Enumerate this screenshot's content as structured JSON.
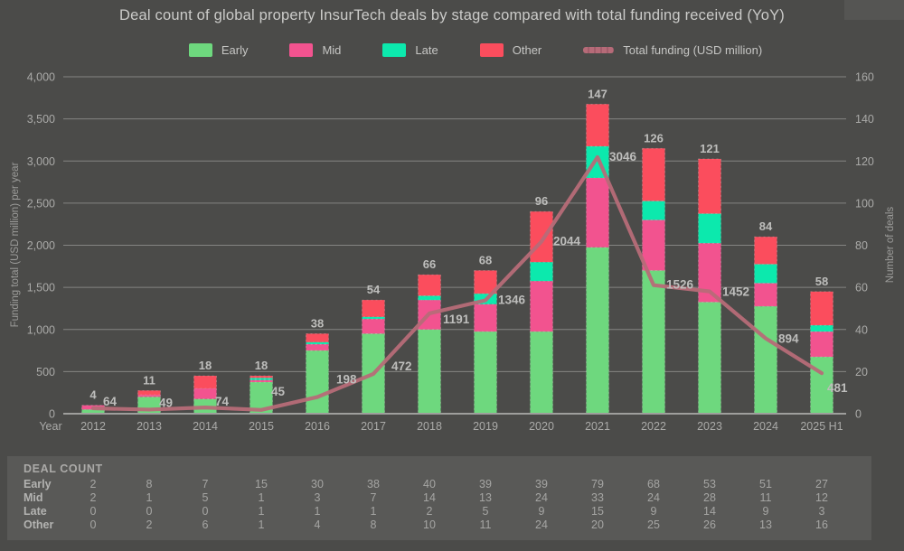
{
  "title": "Deal count of global property InsurTech deals by stage compared with total funding received (YoY)",
  "colors": {
    "background": "#4b4b49",
    "panel": "#595957",
    "grid": "#8f8f8d",
    "axis_line": "#9e9e9c",
    "tick_text": "#aaaaa8",
    "axis_title_text": "#9c9c9a",
    "data_label_text": "#bebebc",
    "early": "#6ed87e",
    "mid": "#f2538f",
    "late": "#0ce9ad",
    "other": "#fb4d5d",
    "funding_line": "#b66b78"
  },
  "legend": {
    "position": "top",
    "items": [
      {
        "label": "Early",
        "color": "#6ed87e",
        "swatch": "box"
      },
      {
        "label": "Mid",
        "color": "#f2538f",
        "swatch": "box"
      },
      {
        "label": "Late",
        "color": "#0ce9ad",
        "swatch": "box"
      },
      {
        "label": "Other",
        "color": "#fb4d5d",
        "swatch": "box"
      },
      {
        "label": "Total funding (USD million)",
        "color": "#b66b78",
        "swatch": "line"
      }
    ]
  },
  "chart_data": {
    "type": "bar",
    "subtype": "stacked-bars-with-line-overlay",
    "title": "Deal count of global property InsurTech deals by stage compared with total funding received (YoY)",
    "categories": [
      "2012",
      "2013",
      "2014",
      "2015",
      "2016",
      "2017",
      "2018",
      "2019",
      "2020",
      "2021",
      "2022",
      "2023",
      "2024",
      "2025 H1"
    ],
    "series": [
      {
        "name": "Early",
        "type": "bar",
        "color": "#6ed87e",
        "values": [
          2,
          8,
          7,
          15,
          30,
          38,
          40,
          39,
          39,
          79,
          68,
          53,
          51,
          27
        ]
      },
      {
        "name": "Mid",
        "type": "bar",
        "color": "#f2538f",
        "values": [
          2,
          1,
          5,
          1,
          3,
          7,
          14,
          13,
          24,
          33,
          24,
          28,
          11,
          12
        ]
      },
      {
        "name": "Late",
        "type": "bar",
        "color": "#0ce9ad",
        "values": [
          0,
          0,
          0,
          1,
          1,
          1,
          2,
          5,
          9,
          15,
          9,
          14,
          9,
          3
        ]
      },
      {
        "name": "Other",
        "type": "bar",
        "color": "#fb4d5d",
        "values": [
          0,
          2,
          6,
          1,
          4,
          8,
          10,
          11,
          24,
          20,
          25,
          26,
          13,
          16
        ]
      },
      {
        "name": "Total funding (USD million)",
        "type": "line",
        "color": "#b66b78",
        "values": [
          64,
          49,
          74,
          45,
          198,
          472,
          1191,
          1346,
          2044,
          3046,
          1526,
          1452,
          894,
          481
        ]
      }
    ],
    "bar_total_labels": [
      "4",
      "11",
      "18",
      "18",
      "38",
      "54",
      "66",
      "68",
      "96",
      "147",
      "126",
      "121",
      "84",
      "58"
    ],
    "line_point_labels": [
      "64",
      "49",
      "74",
      "45",
      "198",
      "472",
      "1191",
      "1346",
      "2044",
      "3046",
      "1526",
      "1452",
      "894",
      "481"
    ],
    "left_axis": {
      "label": "Funding total (USD million) per year",
      "min": 0,
      "max": 4000,
      "step": 500,
      "tick_labels": [
        "0",
        "500",
        "1,000",
        "1,500",
        "2,000",
        "2,500",
        "3,000",
        "3,500",
        "4,000"
      ]
    },
    "right_axis": {
      "label": "Number of deals",
      "min": 0,
      "max": 160,
      "step": 20,
      "tick_labels": [
        "0",
        "20",
        "40",
        "60",
        "80",
        "100",
        "120",
        "140",
        "160"
      ]
    },
    "x_axis": {
      "label": "Year"
    },
    "grid": true,
    "legend_position": "top"
  },
  "table": {
    "title": "DEAL COUNT",
    "columns": [
      "2012",
      "2013",
      "2014",
      "2015",
      "2016",
      "2017",
      "2018",
      "2019",
      "2020",
      "2021",
      "2022",
      "2023",
      "2024",
      "2025 H1"
    ],
    "rows": [
      {
        "label": "Early",
        "values": [
          "2",
          "8",
          "7",
          "15",
          "30",
          "38",
          "40",
          "39",
          "39",
          "79",
          "68",
          "53",
          "51",
          "27"
        ]
      },
      {
        "label": "Mid",
        "values": [
          "2",
          "1",
          "5",
          "1",
          "3",
          "7",
          "14",
          "13",
          "24",
          "33",
          "24",
          "28",
          "11",
          "12"
        ]
      },
      {
        "label": "Late",
        "values": [
          "0",
          "0",
          "0",
          "1",
          "1",
          "1",
          "2",
          "5",
          "9",
          "15",
          "9",
          "14",
          "9",
          "3"
        ]
      },
      {
        "label": "Other",
        "values": [
          "0",
          "2",
          "6",
          "1",
          "4",
          "8",
          "10",
          "11",
          "24",
          "20",
          "25",
          "26",
          "13",
          "16"
        ]
      }
    ]
  }
}
